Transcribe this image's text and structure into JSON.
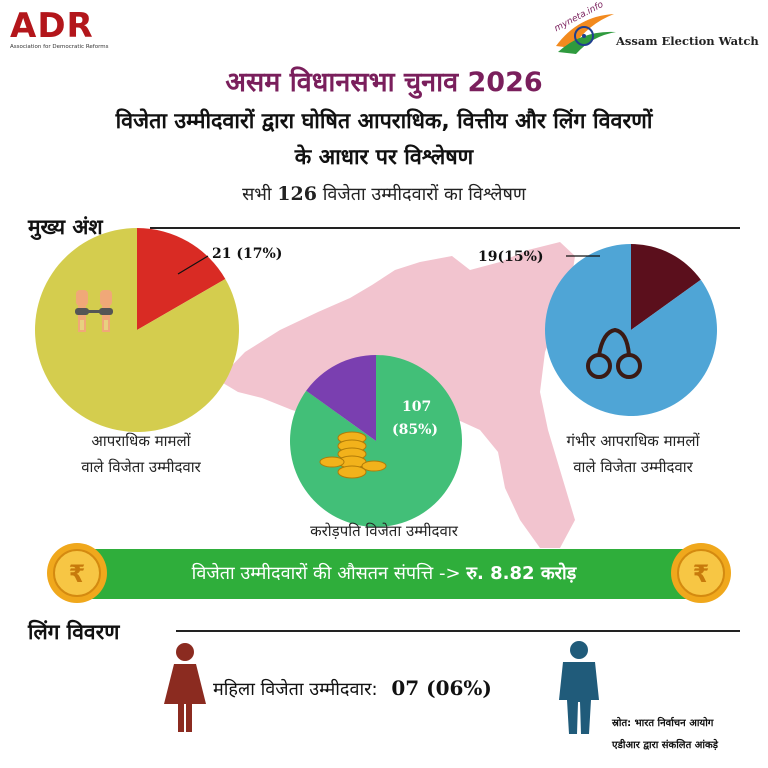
{
  "header": {
    "adr_logo_text": "ADR",
    "adr_logo_subtitle": "Association for Democratic Reforms",
    "aew_logo_small": "myneta.info",
    "aew_logo_text": "Assam Election Watch"
  },
  "title": "असम विधानसभा चुनाव 2026",
  "subtitle_line1": "विजेता उम्मीदवारों द्वारा घोषित आपराधिक, वित्तीय और लिंग विवरणों",
  "subtitle_line2": "के आधार पर विश्लेषण",
  "analysis": {
    "prefix": "सभी",
    "count": "126",
    "suffix": "विजेता उम्मीदवारों का विश्लेषण"
  },
  "highlights_heading": "मुख्य अंश",
  "gender_heading": "लिंग विवरण",
  "colors": {
    "criminal_highlight": "#d92b24",
    "criminal_rest": "#d4cd4e",
    "crorepati_highlight": "#42bf78",
    "crorepati_rest": "#7a3fb0",
    "serious_highlight": "#5b0f1c",
    "serious_rest": "#4fa5d6",
    "assets_bar": "#2fae3b",
    "map_fill": "#f2c4cf",
    "female_icon": "#8b2b20",
    "male_icon": "#205b7a"
  },
  "chart_data": [
    {
      "type": "pie",
      "id": "criminal",
      "caption_line1": "आपराधिक मामलों",
      "caption_line2": "वाले विजेता उम्मीदवार",
      "data_label": "21 (17%)",
      "values": [
        21,
        105
      ],
      "icon": "handcuffed-hands-icon"
    },
    {
      "type": "pie",
      "id": "crorepati",
      "caption": "करोड़पति विजेता उम्मीदवार",
      "data_label_value": "107",
      "data_label_percent": "(85%)",
      "values": [
        107,
        19
      ],
      "icon": "rupee-coins-icon"
    },
    {
      "type": "pie",
      "id": "serious",
      "caption_line1": "गंभीर आपराधिक मामलों",
      "caption_line2": "वाले विजेता उम्मीदवार",
      "data_label": "19(15%)",
      "values": [
        19,
        107
      ],
      "icon": "handcuffs-icon"
    }
  ],
  "assets": {
    "label": "विजेता उम्मीदवारों की औसतन संपत्ति ->",
    "value": "रु. 8.82 करोड़"
  },
  "gender": {
    "label": "महिला विजेता उम्मीदवार:",
    "value": "07 (06%)"
  },
  "source": {
    "line1": "स्रोत: भारत निर्वाचन आयोग",
    "line2": "एडीआर द्वारा संकलित आंकड़े"
  }
}
